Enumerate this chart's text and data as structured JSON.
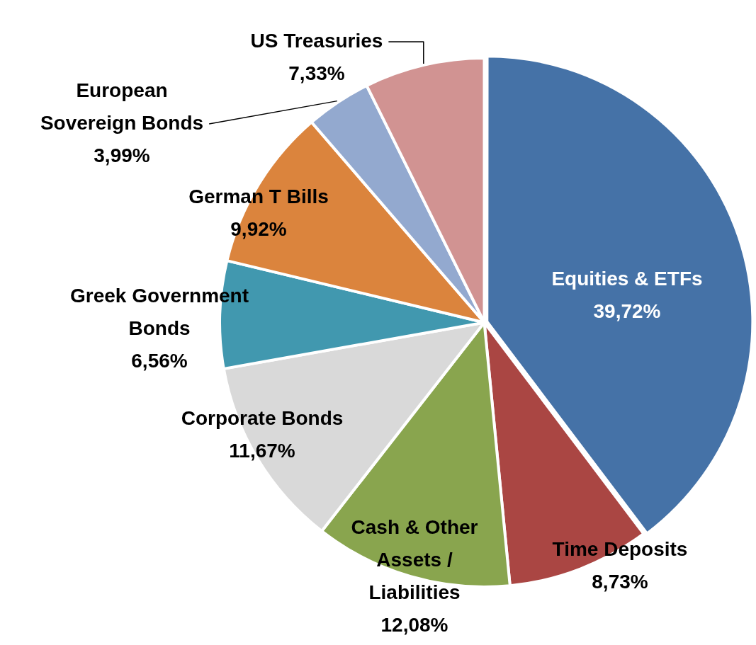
{
  "chart_data": {
    "type": "pie",
    "categories": [
      "Equities & ETFs",
      "Time Deposits",
      "Cash & Other Assets / Liabilities",
      "Corporate Bonds",
      "Greek Government Bonds",
      "German T Bills",
      "European Sovereign Bonds",
      "US Treasuries"
    ],
    "values": [
      39.72,
      8.73,
      12.08,
      11.67,
      6.56,
      9.92,
      3.99,
      7.33
    ],
    "value_labels": [
      "39,72%",
      "8,73%",
      "12,08%",
      "11,67%",
      "6,56%",
      "9,92%",
      "3,99%",
      "7,33%"
    ],
    "colors": [
      "#4572a7",
      "#aa4643",
      "#89a54e",
      "#d9d9d9",
      "#4198af",
      "#db843d",
      "#93a9cf",
      "#d19392"
    ],
    "legend": false
  }
}
